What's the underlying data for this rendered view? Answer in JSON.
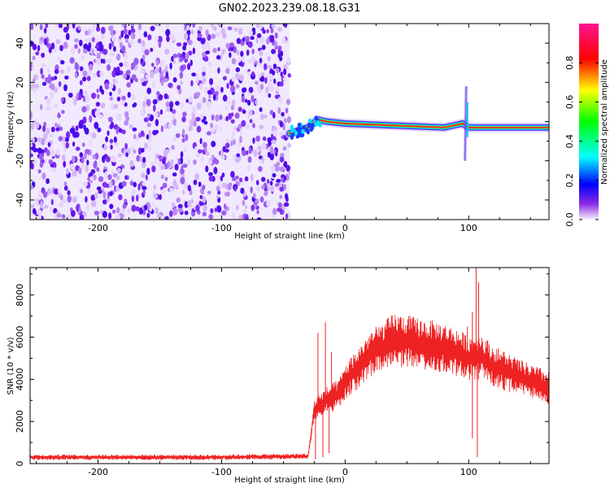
{
  "figure": {
    "title": "GN02.2023.239.08.18.G31"
  },
  "chart_data": [
    {
      "type": "heatmap",
      "xlabel": "Height of straight line (km)",
      "ylabel": "Frequency (Hz)",
      "xlim": [
        -255,
        165
      ],
      "ylim": [
        -50,
        50
      ],
      "x_ticks": [
        -200,
        -100,
        0,
        100
      ],
      "y_ticks": [
        -40,
        -20,
        0,
        20,
        40
      ],
      "colorbar": {
        "label": "Normalized spectral amplitude",
        "range": [
          0,
          1
        ],
        "ticks": [
          0.0,
          0.2,
          0.4,
          0.6,
          0.8
        ],
        "colormap": [
          "#f5f0ff",
          "#8a2be2",
          "#0000ff",
          "#00ffff",
          "#00ff00",
          "#ffff00",
          "#ff0000",
          "#ff1493"
        ]
      },
      "regions": [
        {
          "x_range": [
            -255,
            -45
          ],
          "description_level": "noise",
          "peak_frequency": null
        },
        {
          "x_range": [
            -45,
            165
          ],
          "peak_frequency_track": [
            [
              -45,
              -6
            ],
            [
              -40,
              -5
            ],
            [
              -30,
              -3
            ],
            [
              -22,
              1
            ],
            [
              -15,
              0
            ],
            [
              0,
              -1
            ],
            [
              40,
              -2
            ],
            [
              80,
              -3
            ],
            [
              95,
              -1
            ],
            [
              100,
              -3
            ],
            [
              110,
              -3
            ],
            [
              165,
              -3
            ]
          ]
        }
      ],
      "grid": false,
      "legend": "none"
    },
    {
      "type": "line",
      "xlabel": "Height of straight line (km)",
      "ylabel": "SNR (10 * v/v)",
      "xlim": [
        -255,
        165
      ],
      "ylim": [
        0,
        9300
      ],
      "x_ticks": [
        -200,
        -100,
        0,
        100
      ],
      "y_ticks": [
        0,
        2000,
        4000,
        6000,
        8000
      ],
      "series_color": "#ee2222",
      "envelope": [
        [
          -255,
          300
        ],
        [
          -100,
          300
        ],
        [
          -30,
          350
        ],
        [
          -25,
          2500
        ],
        [
          -20,
          2800
        ],
        [
          -15,
          3000
        ],
        [
          -5,
          3300
        ],
        [
          0,
          3900
        ],
        [
          10,
          4500
        ],
        [
          20,
          5200
        ],
        [
          30,
          5500
        ],
        [
          40,
          5900
        ],
        [
          50,
          5800
        ],
        [
          60,
          5700
        ],
        [
          70,
          5600
        ],
        [
          80,
          5500
        ],
        [
          90,
          5300
        ],
        [
          100,
          5000
        ],
        [
          110,
          5100
        ],
        [
          120,
          4600
        ],
        [
          130,
          4400
        ],
        [
          140,
          4100
        ],
        [
          150,
          3900
        ],
        [
          165,
          3600
        ]
      ],
      "spikes": [
        [
          -22,
          6200
        ],
        [
          -16,
          6700
        ],
        [
          -11,
          5300
        ],
        [
          99,
          6500
        ],
        [
          103,
          7200
        ],
        [
          106,
          9300
        ],
        [
          108,
          8600
        ]
      ],
      "dips": [
        [
          -24,
          200
        ],
        [
          -18,
          300
        ],
        [
          -13,
          500
        ],
        [
          103,
          1200
        ],
        [
          107,
          300
        ]
      ],
      "grid": false,
      "legend": "none"
    }
  ]
}
